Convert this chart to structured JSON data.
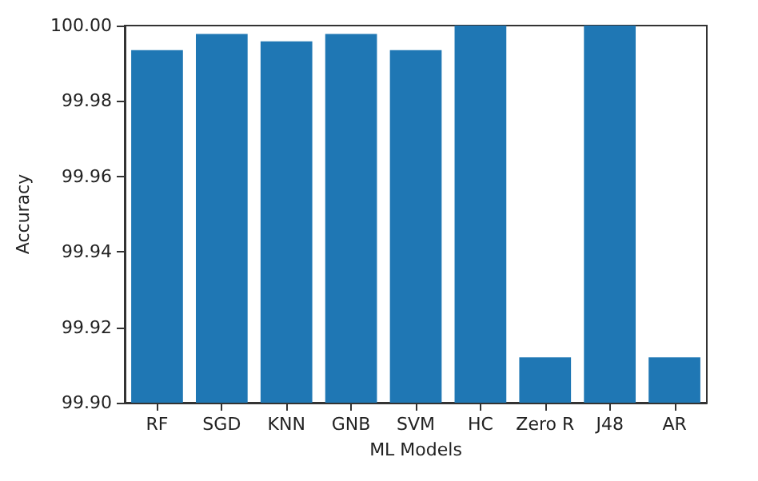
{
  "chart_data": {
    "type": "bar",
    "xlabel": "ML Models",
    "ylabel": "Accuracy",
    "categories": [
      "RF",
      "SGD",
      "KNN",
      "GNB",
      "SVM",
      "HC",
      "Zero R",
      "J48",
      "AR"
    ],
    "values": [
      99.9935,
      99.9978,
      99.9958,
      99.9978,
      99.9935,
      100.0,
      99.912,
      100.0,
      99.912
    ],
    "color": "#1f77b4",
    "ylim": [
      99.9,
      100.0
    ],
    "yticks": [
      {
        "value": 99.9,
        "label": "99.90"
      },
      {
        "value": 99.92,
        "label": "99.92"
      },
      {
        "value": 99.94,
        "label": "99.94"
      },
      {
        "value": 99.96,
        "label": "99.96"
      },
      {
        "value": 99.98,
        "label": "99.98"
      },
      {
        "value": 100.0,
        "label": "100.00"
      }
    ],
    "grid": false
  }
}
